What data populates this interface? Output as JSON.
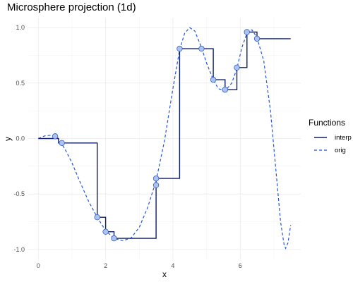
{
  "chart_data": {
    "type": "line",
    "title": "Microsphere projection (1d)",
    "xlabel": "x",
    "ylabel": "y",
    "xlim": [
      -0.3,
      7.8
    ],
    "ylim": [
      -1.09,
      1.09
    ],
    "x_ticks": [
      0,
      2,
      4,
      6
    ],
    "y_ticks": [
      -1.0,
      -0.5,
      0.0,
      0.5,
      1.0
    ],
    "x_tick_labels": [
      "0",
      "2",
      "4",
      "6"
    ],
    "y_tick_labels": [
      "-1.0",
      "-0.5",
      "0.0",
      "0.5",
      "1.0"
    ],
    "grid": true,
    "legend": {
      "title": "Functions",
      "position": "right",
      "entries": [
        {
          "label": "interp",
          "style": "solid",
          "color": "#0d1f6b"
        },
        {
          "label": "orig",
          "style": "dashed",
          "color": "#2255e0"
        }
      ]
    },
    "sample_points": [
      {
        "x": 0.5,
        "y": 0.02
      },
      {
        "x": 0.7,
        "y": -0.04
      },
      {
        "x": 1.75,
        "y": -0.71
      },
      {
        "x": 2.0,
        "y": -0.84
      },
      {
        "x": 2.25,
        "y": -0.9
      },
      {
        "x": 3.5,
        "y": -0.42
      },
      {
        "x": 3.5,
        "y": -0.36
      },
      {
        "x": 4.2,
        "y": 0.81
      },
      {
        "x": 4.85,
        "y": 0.81
      },
      {
        "x": 5.2,
        "y": 0.53
      },
      {
        "x": 5.55,
        "y": 0.44
      },
      {
        "x": 5.9,
        "y": 0.64
      },
      {
        "x": 6.2,
        "y": 0.96
      },
      {
        "x": 6.5,
        "y": 0.9
      }
    ],
    "series": [
      {
        "name": "interp",
        "style": "step",
        "color": "#0d1f6b",
        "points": [
          [
            0.0,
            0.0
          ],
          [
            0.6,
            0.0
          ],
          [
            0.6,
            -0.04
          ],
          [
            1.75,
            -0.04
          ],
          [
            1.75,
            -0.71
          ],
          [
            2.0,
            -0.71
          ],
          [
            2.0,
            -0.84
          ],
          [
            2.25,
            -0.84
          ],
          [
            2.25,
            -0.9
          ],
          [
            3.5,
            -0.9
          ],
          [
            3.5,
            -0.36
          ],
          [
            4.2,
            -0.36
          ],
          [
            4.2,
            0.81
          ],
          [
            5.2,
            0.81
          ],
          [
            5.2,
            0.53
          ],
          [
            5.55,
            0.53
          ],
          [
            5.55,
            0.44
          ],
          [
            5.9,
            0.44
          ],
          [
            5.9,
            0.64
          ],
          [
            6.2,
            0.64
          ],
          [
            6.2,
            0.96
          ],
          [
            6.5,
            0.96
          ],
          [
            6.5,
            0.9
          ],
          [
            7.5,
            0.9
          ]
        ]
      },
      {
        "name": "orig",
        "style": "dashed",
        "color": "#2255e0",
        "points": [
          [
            0.0,
            0.0
          ],
          [
            0.2,
            0.025
          ],
          [
            0.4,
            0.03
          ],
          [
            0.6,
            0.0
          ],
          [
            0.8,
            -0.1
          ],
          [
            1.0,
            -0.22
          ],
          [
            1.25,
            -0.4
          ],
          [
            1.5,
            -0.57
          ],
          [
            1.75,
            -0.71
          ],
          [
            2.0,
            -0.83
          ],
          [
            2.25,
            -0.9
          ],
          [
            2.5,
            -0.92
          ],
          [
            2.75,
            -0.9
          ],
          [
            3.0,
            -0.8
          ],
          [
            3.25,
            -0.62
          ],
          [
            3.5,
            -0.38
          ],
          [
            3.75,
            -0.02
          ],
          [
            4.0,
            0.45
          ],
          [
            4.2,
            0.8
          ],
          [
            4.35,
            0.95
          ],
          [
            4.5,
            1.0
          ],
          [
            4.65,
            0.97
          ],
          [
            4.85,
            0.82
          ],
          [
            5.0,
            0.68
          ],
          [
            5.2,
            0.53
          ],
          [
            5.35,
            0.45
          ],
          [
            5.55,
            0.43
          ],
          [
            5.75,
            0.5
          ],
          [
            5.9,
            0.63
          ],
          [
            6.05,
            0.82
          ],
          [
            6.2,
            0.95
          ],
          [
            6.35,
            0.98
          ],
          [
            6.5,
            0.91
          ],
          [
            6.7,
            0.7
          ],
          [
            6.9,
            0.25
          ],
          [
            7.05,
            -0.25
          ],
          [
            7.2,
            -0.75
          ],
          [
            7.3,
            -0.95
          ],
          [
            7.35,
            -0.99
          ],
          [
            7.42,
            -0.94
          ],
          [
            7.5,
            -0.78
          ]
        ]
      }
    ]
  }
}
